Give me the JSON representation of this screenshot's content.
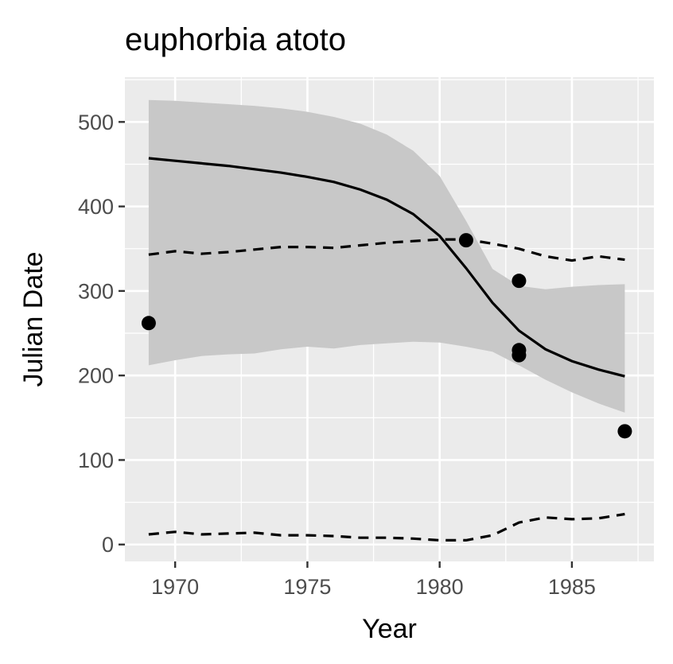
{
  "title": "euphorbia atoto",
  "chart_data": {
    "type": "line",
    "title": "euphorbia atoto",
    "xlabel": "Year",
    "ylabel": "Julian Date",
    "xlim": [
      1968.1,
      1988.1
    ],
    "ylim": [
      -20,
      553
    ],
    "x_ticks": [
      1970,
      1975,
      1980,
      1985
    ],
    "y_ticks": [
      0,
      100,
      200,
      300,
      400,
      500
    ],
    "x_tick_labels": [
      "1970",
      "1975",
      "1980",
      "1985"
    ],
    "y_tick_labels": [
      "0",
      "100",
      "200",
      "300",
      "400",
      "500"
    ],
    "grid": true,
    "background": "#ebebeb",
    "colors": {
      "points": "#000000",
      "fit_line": "#000000",
      "ribbon": "#c8c8c8",
      "grid": "#ffffff"
    },
    "points": [
      {
        "x": 1969,
        "y": 262
      },
      {
        "x": 1981,
        "y": 360
      },
      {
        "x": 1983,
        "y": 312
      },
      {
        "x": 1983,
        "y": 230
      },
      {
        "x": 1983,
        "y": 224
      },
      {
        "x": 1987,
        "y": 134
      }
    ],
    "fit": {
      "x": [
        1969,
        1970,
        1971,
        1972,
        1973,
        1974,
        1975,
        1976,
        1977,
        1978,
        1979,
        1980,
        1981,
        1982,
        1983,
        1984,
        1985,
        1986,
        1987
      ],
      "y": [
        457,
        454,
        451,
        448,
        444,
        440,
        435,
        429,
        420,
        408,
        391,
        365,
        327,
        286,
        253,
        231,
        217,
        207,
        199
      ],
      "lower": [
        212,
        218,
        223,
        225,
        226,
        231,
        234,
        232,
        236,
        238,
        240,
        239,
        234,
        228,
        212,
        195,
        180,
        167,
        156
      ],
      "upper": [
        526,
        525,
        523,
        521,
        519,
        516,
        512,
        506,
        498,
        485,
        466,
        436,
        383,
        326,
        306,
        302,
        305,
        307,
        308
      ]
    },
    "quantile_bands": [
      {
        "style": "dashed",
        "x": [
          1969,
          1970,
          1971,
          1972,
          1973,
          1974,
          1975,
          1976,
          1977,
          1978,
          1979,
          1980,
          1981,
          1982,
          1983,
          1984,
          1985,
          1986,
          1987
        ],
        "y": [
          343,
          347,
          344,
          346,
          349,
          352,
          352,
          351,
          354,
          357,
          359,
          361,
          361,
          356,
          350,
          341,
          336,
          341,
          337
        ]
      },
      {
        "style": "dashed",
        "x": [
          1969,
          1970,
          1971,
          1972,
          1973,
          1974,
          1975,
          1976,
          1977,
          1978,
          1979,
          1980,
          1981,
          1982,
          1983,
          1984,
          1985,
          1986,
          1987
        ],
        "y": [
          12,
          15,
          12,
          13,
          14,
          11,
          11,
          10,
          8,
          8,
          7,
          5,
          5,
          11,
          26,
          32,
          30,
          31,
          36
        ]
      }
    ]
  }
}
